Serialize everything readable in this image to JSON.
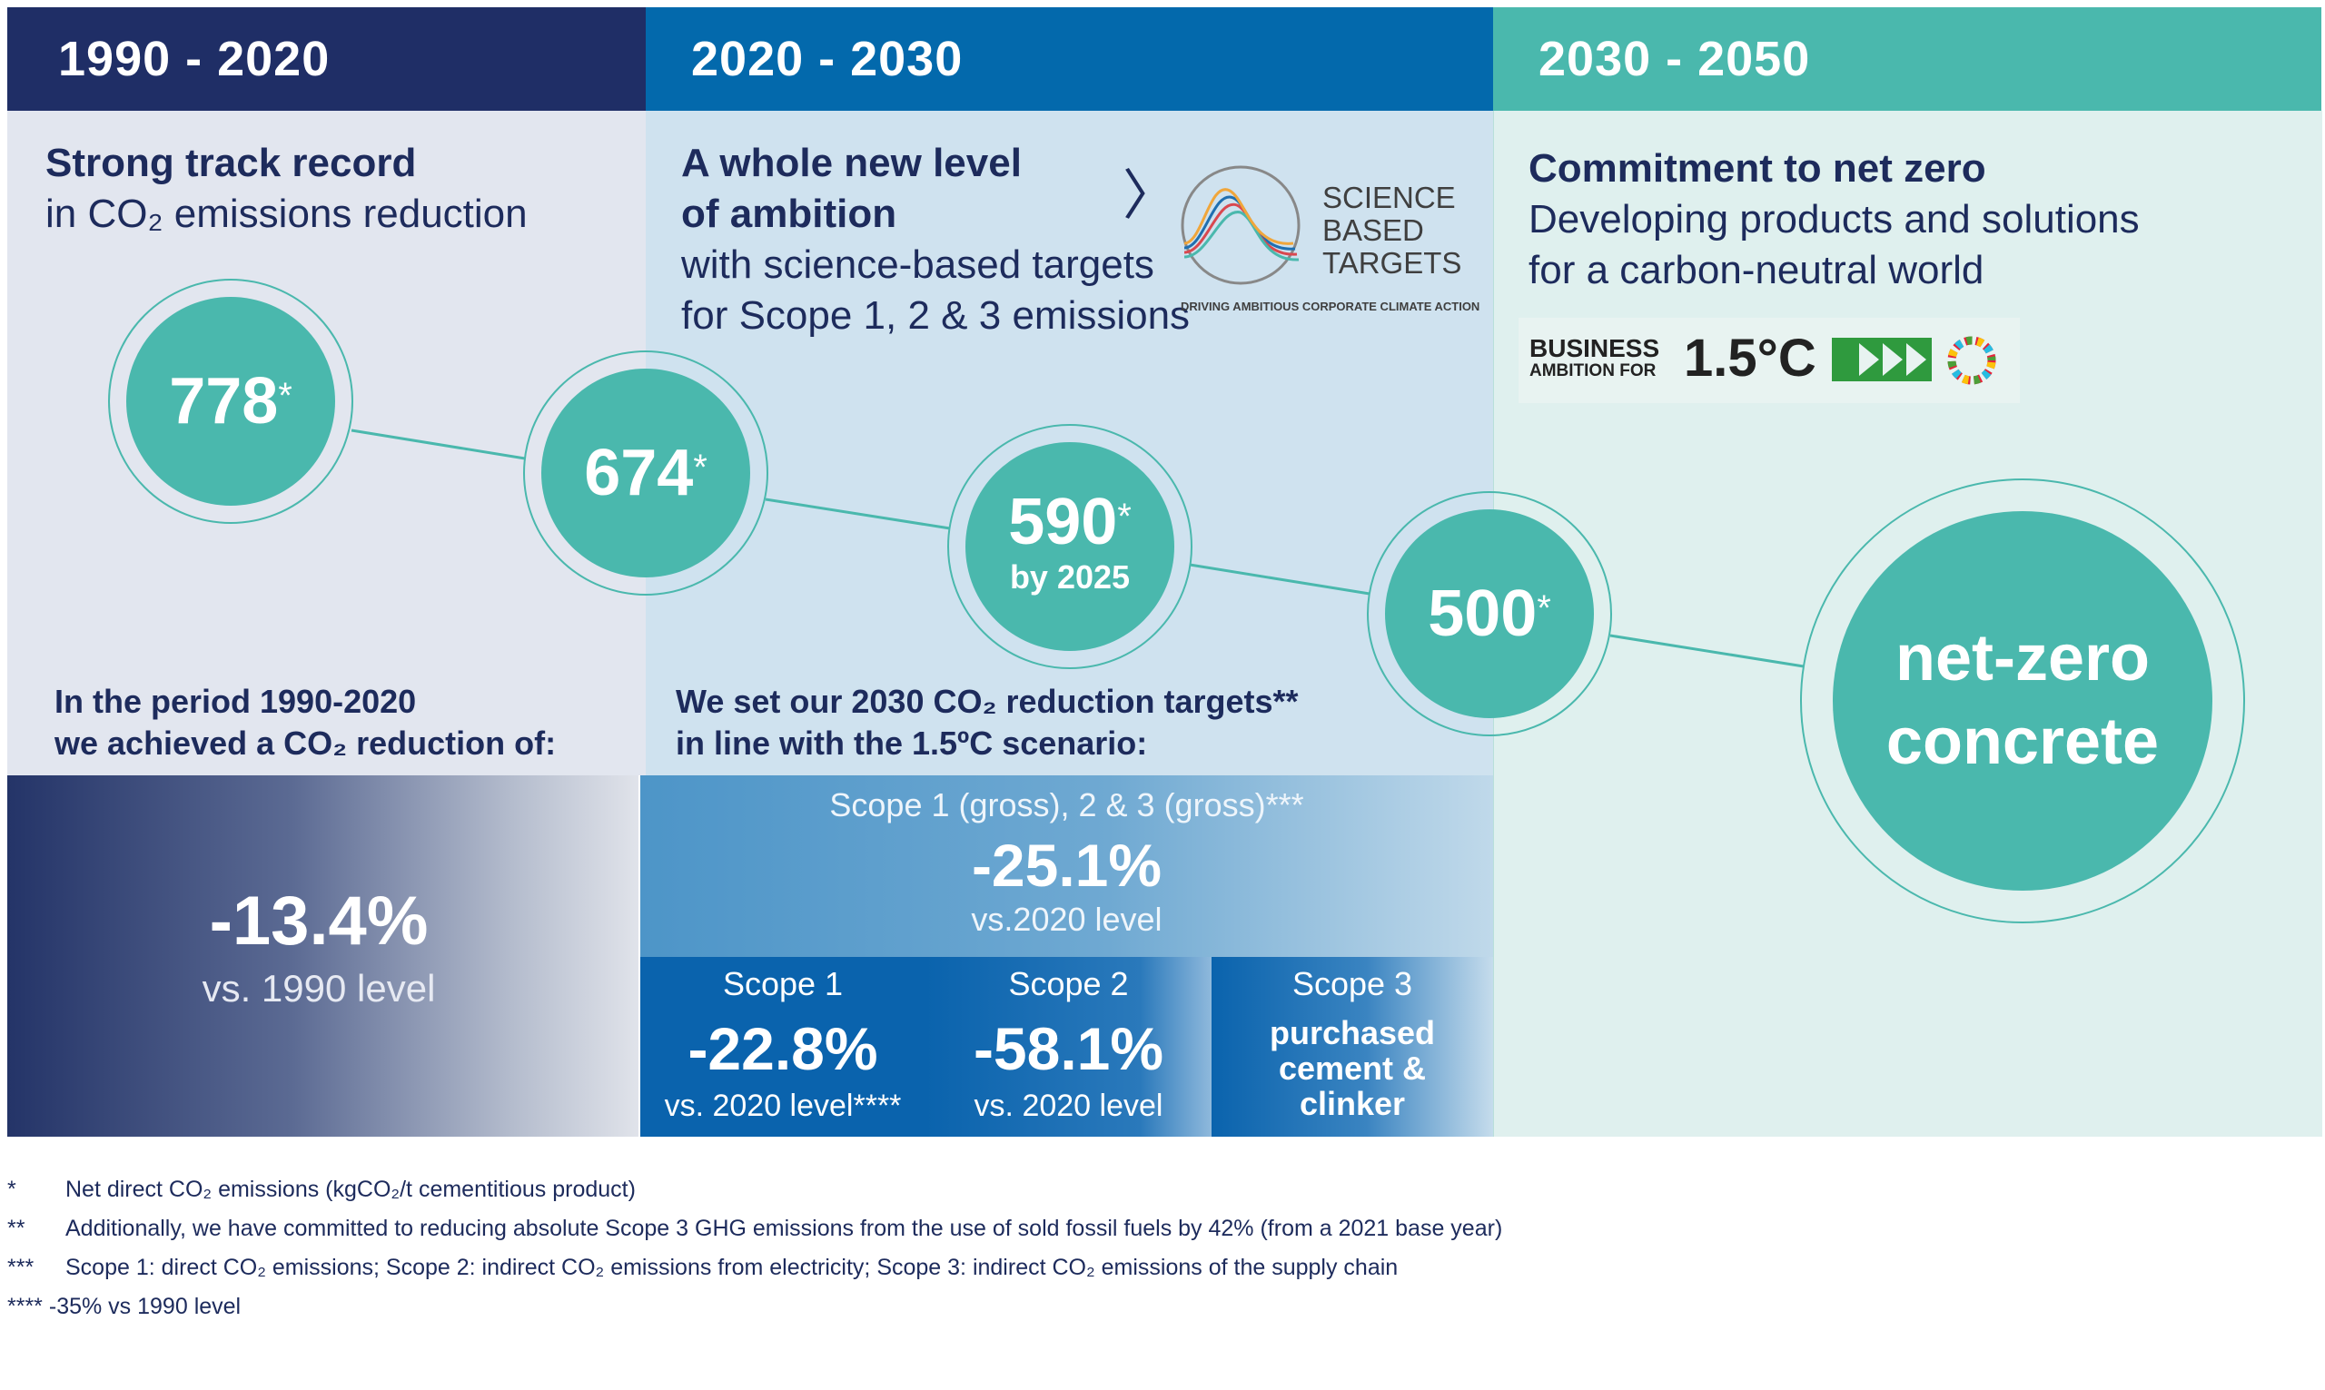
{
  "columns": [
    {
      "period": "1990 - 2020",
      "title_bold": "Strong track record",
      "title_light": "in CO₂ emissions reduction",
      "achieved_line1": "In the period 1990-2020",
      "achieved_line2": "we achieved a CO₂ reduction of:",
      "reduction_value": "-13.4%",
      "reduction_ref": "vs. 1990 level"
    },
    {
      "period": "2020 - 2030",
      "title_bold_1": "A whole new level",
      "title_bold_2": "of ambition",
      "title_light_1": "with science-based targets",
      "title_light_2": "for Scope 1, 2 & 3 emissions",
      "targets_line1": "We set our 2030 CO₂ reduction targets**",
      "targets_line2": "in line with the 1.5ºC scenario:",
      "overall_scope": "Scope 1 (gross), 2 & 3 (gross)***",
      "overall_value": "-25.1%",
      "overall_ref": "vs.2020 level",
      "scopes": [
        {
          "label": "Scope 1",
          "value": "-22.8%",
          "ref": "vs. 2020 level****"
        },
        {
          "label": "Scope 2",
          "value": "-58.1%",
          "ref": "vs. 2020 level"
        },
        {
          "label": "Scope 3",
          "value_lines": [
            "purchased",
            "cement &",
            "clinker"
          ]
        }
      ]
    },
    {
      "period": "2030 - 2050",
      "title_bold": "Commitment to net zero",
      "title_light_1": "Developing products and solutions",
      "title_light_2": "for a carbon-neutral world"
    }
  ],
  "milestones": [
    {
      "value": "778",
      "mark": "*"
    },
    {
      "value": "674",
      "mark": "*"
    },
    {
      "value": "590",
      "mark": "*",
      "note": "by 2025"
    },
    {
      "value": "500",
      "mark": "*"
    },
    {
      "value_lines": [
        "net-zero",
        "concrete"
      ]
    }
  ],
  "sbt_logo": {
    "line1": "SCIENCE",
    "line2": "BASED",
    "line3": "TARGETS",
    "tagline": "DRIVING AMBITIOUS CORPORATE CLIMATE ACTION"
  },
  "business_ambition_logo": {
    "line1": "BUSINESS",
    "line2": "AMBITION FOR",
    "big": "1.5°C"
  },
  "arrow_glyph": "〉",
  "footnotes": [
    {
      "mark": "*",
      "text": "Net direct CO₂ emissions (kgCO₂/t cementitious product)"
    },
    {
      "mark": "**",
      "text": "Additionally, we have committed  to reducing absolute Scope 3 GHG emissions from the use of sold fossil fuels by 42% (from a 2021 base year)"
    },
    {
      "mark": "***",
      "text": "Scope 1: direct CO₂ emissions; Scope 2: indirect CO₂ emissions from electricity; Scope 3: indirect CO₂ emissions of the supply chain"
    },
    {
      "mark": "****",
      "text": "-35% vs 1990 level"
    }
  ],
  "colors": {
    "navy": "#1f2e66",
    "blue": "#0369ac",
    "teal": "#4ab8ad"
  }
}
